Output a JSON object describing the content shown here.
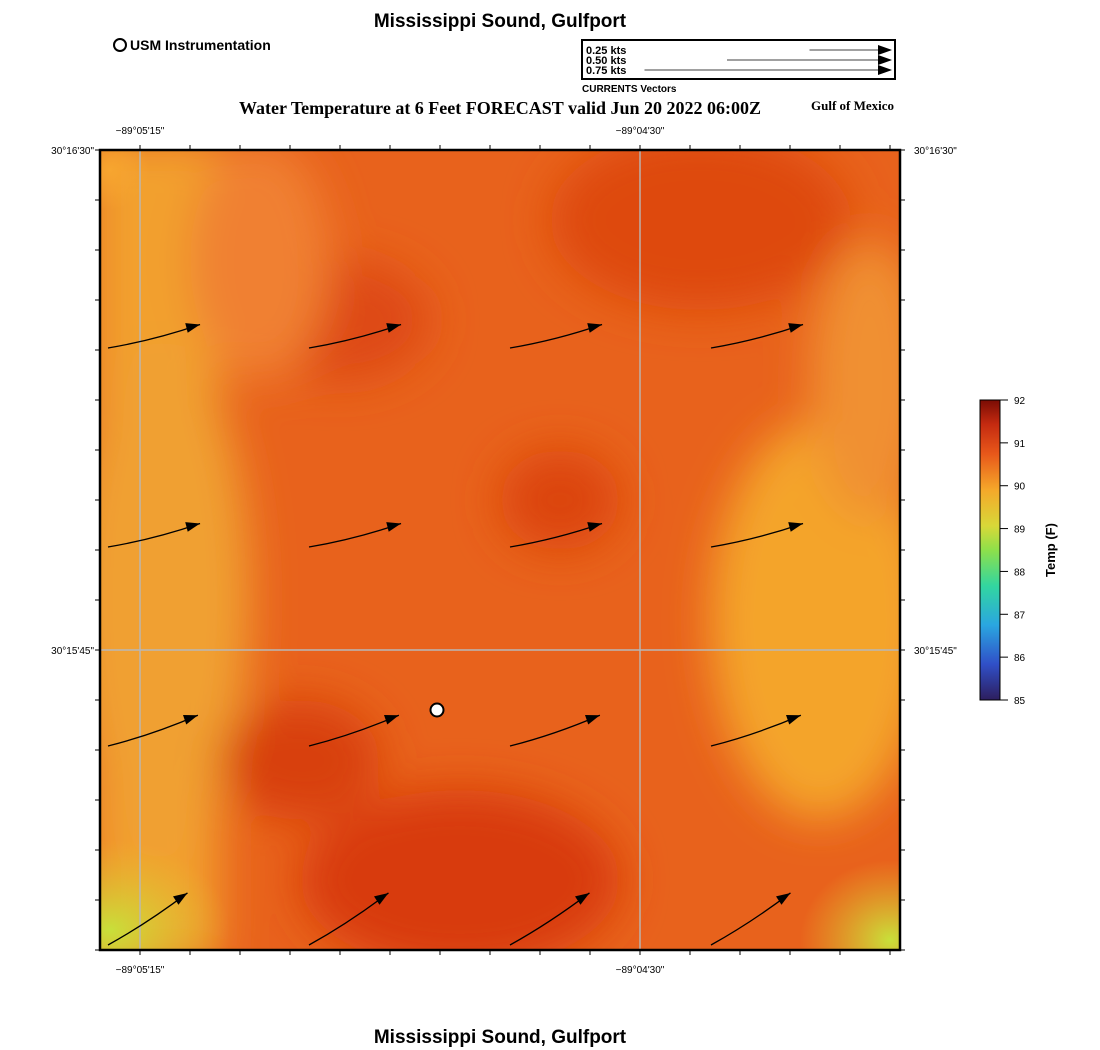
{
  "header": {
    "title": "Mississippi Sound, Gulfport",
    "subtitle": "Water Temperature at 6 Feet FORECAST valid Jun 20 2022 06:00Z",
    "region": "Gulf of Mexico",
    "footer_title": "Mississippi Sound, Gulfport"
  },
  "station_legend": {
    "label": "USM Instrumentation",
    "icon": "open-circle-icon"
  },
  "vector_legend": {
    "caption": "CURRENTS Vectors",
    "items": [
      {
        "label": "0.25 kts",
        "speed_kts": 0.25
      },
      {
        "label": "0.50 kts",
        "speed_kts": 0.5
      },
      {
        "label": "0.75 kts",
        "speed_kts": 0.75
      }
    ]
  },
  "axes": {
    "lon_ticks": [
      "−89°05'15\"",
      "−89°04'30\""
    ],
    "lat_ticks": [
      "30°16'30\"",
      "30°15'45\""
    ],
    "grid": true
  },
  "colorbar": {
    "label": "Temp (F)",
    "min": 85,
    "max": 92,
    "ticks": [
      "92",
      "91",
      "90",
      "89",
      "88",
      "87",
      "86",
      "85"
    ],
    "colors": [
      "#2d1e5e",
      "#3050c8",
      "#2aa6e0",
      "#32d6a0",
      "#8ee04a",
      "#d8d838",
      "#f5a82a",
      "#e8581a",
      "#c42a10",
      "#7a0c04"
    ]
  },
  "map": {
    "station": {
      "name": "USM Instrumentation"
    },
    "current_vectors_rows": 4,
    "current_vectors_cols": 4
  }
}
